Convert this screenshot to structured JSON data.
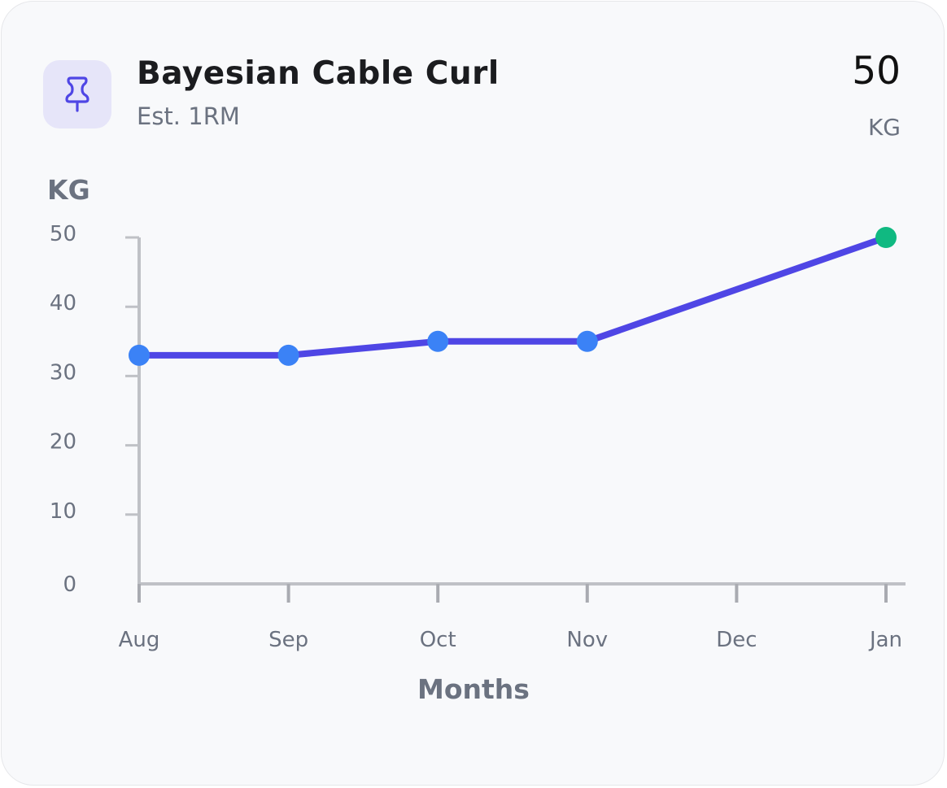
{
  "header": {
    "icon": "pushpin-icon",
    "title": "Bayesian Cable Curl",
    "subtitle": "Est. 1RM",
    "value": "50",
    "unit": "KG"
  },
  "colors": {
    "line": "#4f46e5",
    "point": "#3b82f6",
    "last_point": "#10b981",
    "axis": "#bfc1c6",
    "icon": "#4f46e5",
    "icon_bg": "#e6e5f9"
  },
  "chart_data": {
    "type": "line",
    "title": "",
    "xlabel": "Months",
    "ylabel": "KG",
    "categories": [
      "Aug",
      "Sep",
      "Oct",
      "Nov",
      "Dec",
      "Jan"
    ],
    "series": [
      {
        "values": [
          33,
          33,
          35,
          35,
          null,
          50
        ]
      }
    ],
    "yticks": [
      0,
      10,
      20,
      30,
      40,
      50
    ],
    "ylim": [
      0,
      50
    ],
    "grid": false,
    "legend": "none"
  }
}
